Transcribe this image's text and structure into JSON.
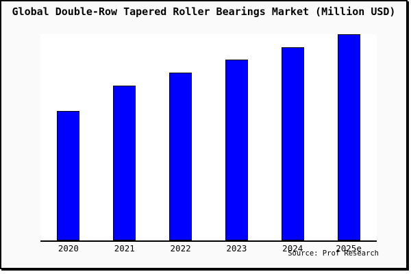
{
  "title": "Global Double-Row Tapered Roller Bearings Market (Million USD)",
  "source_note": "Source: Prof Research",
  "colors": {
    "bar_fill": "#0000ff",
    "bar_border": "#000000",
    "figure_background": "#fafafa",
    "plot_background": "#ffffff",
    "frame_border": "#000000",
    "axis_line": "#000000",
    "text": "#000000"
  },
  "chart_data": {
    "type": "bar",
    "title": "Global Double-Row Tapered Roller Bearings Market (Million USD)",
    "categories": [
      "2020",
      "2021",
      "2022",
      "2023",
      "2024",
      "2025e"
    ],
    "values": [
      62.8,
      75.1,
      81.5,
      87.7,
      93.6,
      100
    ],
    "values_note": "No y-axis ticks or data labels are shown in the chart; values are relative bar heights normalized so 2025e = 100",
    "xlabel": "",
    "ylabel": "",
    "ylim": [
      0,
      100
    ],
    "grid": false,
    "legend": false,
    "y_axis_visible": false,
    "bar_color": "#0000ff",
    "bar_edge_color": "#000000",
    "annotations": [
      "Source: Prof Research"
    ]
  }
}
